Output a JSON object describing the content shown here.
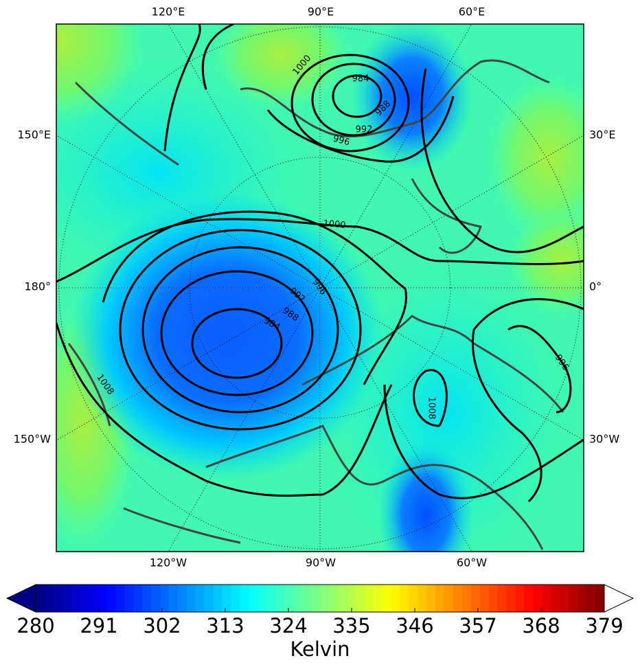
{
  "map": {
    "top_labels": [
      "120°E",
      "90°E",
      "60°E"
    ],
    "bottom_labels": [
      "120°W",
      "90°W",
      "60°W"
    ],
    "left_labels": [
      "150°E",
      "180°",
      "150°W"
    ],
    "right_labels": [
      "30°E",
      "0°",
      "30°W"
    ],
    "contour_labels": [
      1000,
      984,
      988,
      992,
      996,
      1000,
      996,
      992,
      988,
      984,
      1008,
      996,
      1008
    ]
  },
  "colorbar": {
    "colormap": "jet",
    "range": [
      280,
      379
    ],
    "ticks": [
      280,
      291,
      302,
      313,
      324,
      335,
      346,
      357,
      368,
      379
    ],
    "label": "Kelvin"
  }
}
